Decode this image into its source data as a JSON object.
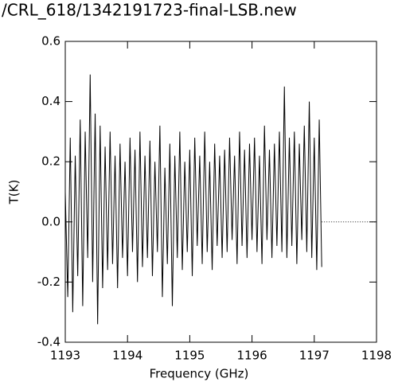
{
  "chart_data": {
    "type": "line",
    "title": "/CRL_618/1342191723-final-LSB.new",
    "xlabel": "Frequency (GHz)",
    "ylabel": "T(K)",
    "color": "#000000",
    "xlim": [
      1193,
      1198
    ],
    "xticks": [
      1193,
      1194,
      1195,
      1196,
      1197,
      1198
    ],
    "ylim": [
      -0.4,
      0.6
    ],
    "yticks": [
      -0.4,
      -0.2,
      {
        "value": 0,
        "label": "0.0"
      },
      0.2,
      0.4,
      0.6
    ],
    "x": [
      1193.0,
      1193.04,
      1193.08,
      1193.12,
      1193.16,
      1193.2,
      1193.24,
      1193.28,
      1193.32,
      1193.36,
      1193.4,
      1193.44,
      1193.48,
      1193.52,
      1193.56,
      1193.6,
      1193.64,
      1193.68,
      1193.72,
      1193.76,
      1193.8,
      1193.84,
      1193.88,
      1193.92,
      1193.96,
      1194.0,
      1194.04,
      1194.08,
      1194.12,
      1194.16,
      1194.2,
      1194.24,
      1194.28,
      1194.32,
      1194.36,
      1194.4,
      1194.44,
      1194.48,
      1194.52,
      1194.56,
      1194.6,
      1194.64,
      1194.68,
      1194.72,
      1194.76,
      1194.8,
      1194.84,
      1194.88,
      1194.92,
      1194.96,
      1195.0,
      1195.04,
      1195.08,
      1195.12,
      1195.16,
      1195.2,
      1195.24,
      1195.28,
      1195.32,
      1195.36,
      1195.4,
      1195.44,
      1195.48,
      1195.52,
      1195.56,
      1195.6,
      1195.64,
      1195.68,
      1195.72,
      1195.76,
      1195.8,
      1195.84,
      1195.88,
      1195.92,
      1195.96,
      1196.0,
      1196.04,
      1196.08,
      1196.12,
      1196.16,
      1196.2,
      1196.24,
      1196.28,
      1196.32,
      1196.36,
      1196.4,
      1196.44,
      1196.48,
      1196.52,
      1196.56,
      1196.6,
      1196.64,
      1196.68,
      1196.72,
      1196.76,
      1196.8,
      1196.84,
      1196.88,
      1196.92,
      1196.96,
      1197.0,
      1197.04,
      1197.08,
      1197.12
    ],
    "values": [
      0.1,
      -0.25,
      0.28,
      -0.3,
      0.22,
      -0.18,
      0.34,
      -0.28,
      0.3,
      -0.12,
      0.49,
      -0.2,
      0.36,
      -0.34,
      0.32,
      -0.22,
      0.25,
      -0.16,
      0.3,
      -0.14,
      0.22,
      -0.22,
      0.26,
      -0.12,
      0.2,
      -0.18,
      0.28,
      -0.1,
      0.24,
      -0.2,
      0.3,
      -0.15,
      0.22,
      -0.12,
      0.27,
      -0.18,
      0.2,
      -0.1,
      0.32,
      -0.25,
      0.18,
      -0.14,
      0.26,
      -0.28,
      0.22,
      -0.12,
      0.3,
      -0.16,
      0.2,
      -0.1,
      0.24,
      -0.18,
      0.28,
      -0.08,
      0.22,
      -0.14,
      0.3,
      -0.1,
      0.2,
      -0.16,
      0.26,
      -0.08,
      0.22,
      -0.12,
      0.24,
      -0.1,
      0.28,
      -0.06,
      0.22,
      -0.14,
      0.3,
      -0.08,
      0.24,
      -0.12,
      0.26,
      -0.06,
      0.28,
      -0.1,
      0.22,
      -0.14,
      0.32,
      -0.06,
      0.24,
      -0.12,
      0.26,
      -0.08,
      0.3,
      -0.1,
      0.45,
      -0.12,
      0.28,
      -0.08,
      0.3,
      -0.14,
      0.26,
      -0.06,
      0.32,
      -0.1,
      0.4,
      -0.12,
      0.28,
      -0.16,
      0.34,
      -0.15
    ]
  }
}
